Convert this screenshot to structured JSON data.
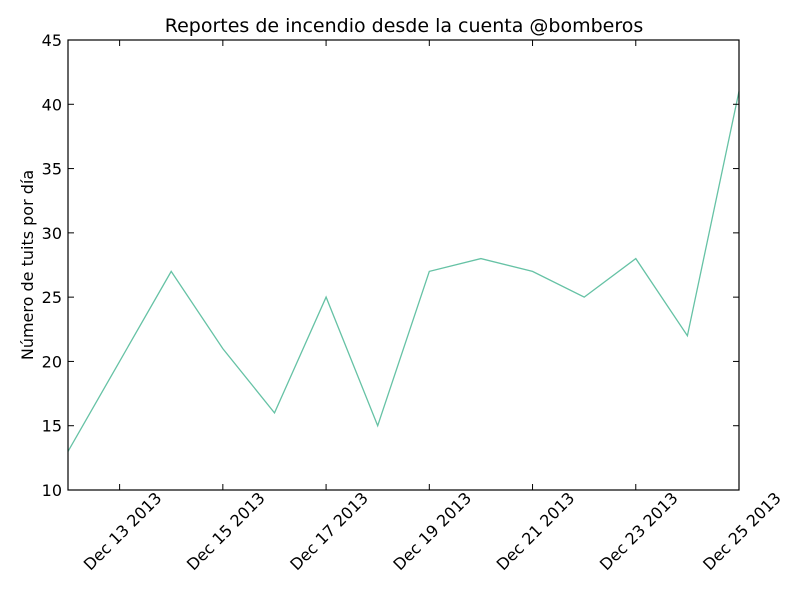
{
  "chart_data": {
    "type": "line",
    "title": "Reportes de incendio desde la cuenta @bomberos",
    "xlabel": "",
    "ylabel": "Número de tuits por día",
    "x": [
      "2013-12-12",
      "2013-12-13",
      "2013-12-14",
      "2013-12-15",
      "2013-12-16",
      "2013-12-17",
      "2013-12-18",
      "2013-12-19",
      "2013-12-20",
      "2013-12-21",
      "2013-12-22",
      "2013-12-23",
      "2013-12-24",
      "2013-12-25"
    ],
    "series": [
      {
        "values": [
          13,
          20,
          27,
          21,
          16,
          25,
          15,
          27,
          28,
          27,
          25,
          28,
          22,
          41
        ],
        "color": "#66c2a5"
      }
    ],
    "xlim": [
      "2013-12-12",
      "2013-12-25"
    ],
    "ylim": [
      10,
      45
    ],
    "yticks": [
      10,
      15,
      20,
      25,
      30,
      35,
      40,
      45
    ],
    "xticks": [
      "Dec 13 2013",
      "Dec 15 2013",
      "Dec 17 2013",
      "Dec 19 2013",
      "Dec 21 2013",
      "Dec 23 2013",
      "Dec 25 2013"
    ],
    "xtick_dates": [
      "2013-12-13",
      "2013-12-15",
      "2013-12-17",
      "2013-12-19",
      "2013-12-21",
      "2013-12-23",
      "2013-12-25"
    ],
    "grid": false,
    "legend": "none"
  }
}
